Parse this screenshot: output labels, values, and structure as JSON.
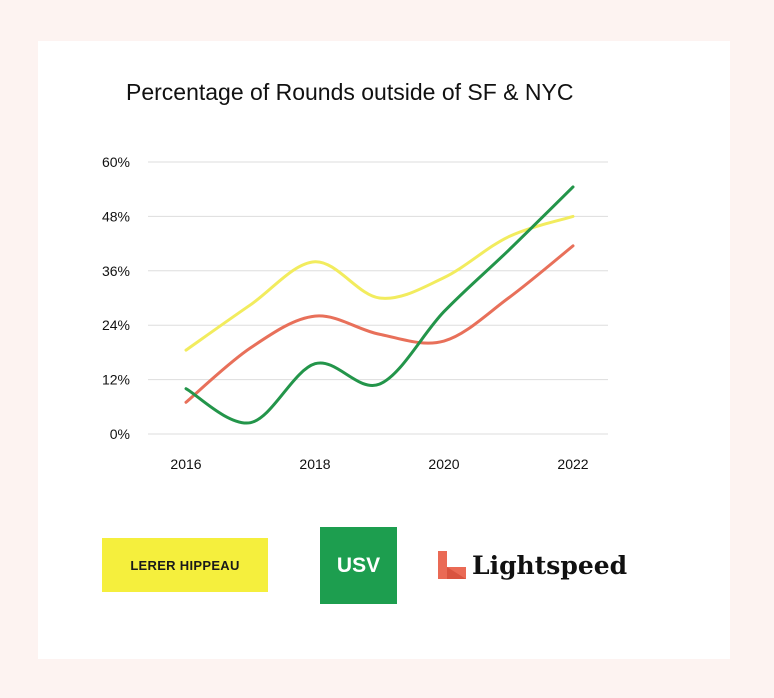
{
  "chart_data": {
    "type": "line",
    "title": "Percentage of Rounds outside of SF & NYC",
    "xlabel": "",
    "ylabel": "",
    "x": [
      2016,
      2017,
      2018,
      2019,
      2020,
      2021,
      2022
    ],
    "xticks": [
      "2016",
      "2018",
      "2020",
      "2022"
    ],
    "yticks": [
      "0%",
      "12%",
      "24%",
      "36%",
      "48%",
      "60%"
    ],
    "ylim": [
      0,
      60
    ],
    "xlim": [
      2016,
      2022
    ],
    "grid": true,
    "series": [
      {
        "color": "#f2ec5e",
        "values": [
          18.5,
          28.5,
          38,
          30,
          34.5,
          43.5,
          48
        ]
      },
      {
        "color": "#e8705a",
        "values": [
          7,
          19,
          26,
          22,
          20.5,
          30,
          41.5
        ]
      },
      {
        "color": "#23954a",
        "values": [
          10,
          2.5,
          15.5,
          11,
          27,
          40.5,
          54.5
        ]
      }
    ]
  },
  "logos": {
    "lerer_hippeau": "LERER HIPPEAU",
    "usv": "USV",
    "lightspeed": "Lightspeed"
  }
}
